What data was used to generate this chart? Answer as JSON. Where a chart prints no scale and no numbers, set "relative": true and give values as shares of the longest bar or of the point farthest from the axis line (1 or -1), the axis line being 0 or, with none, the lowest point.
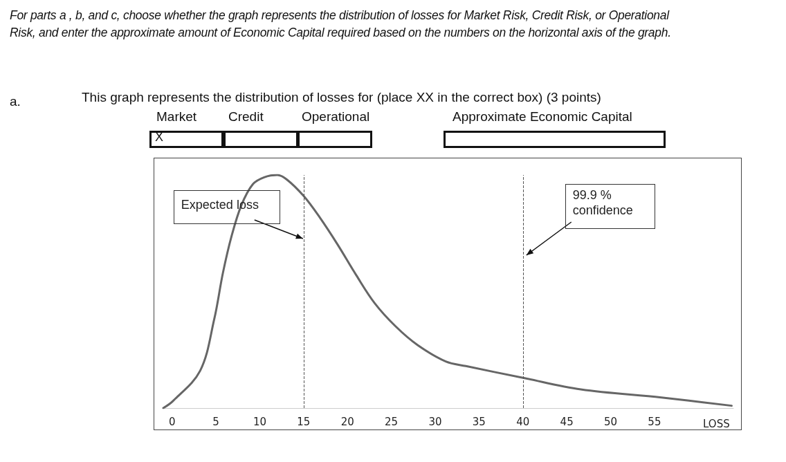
{
  "chart_data": {
    "type": "line",
    "relative": true,
    "annotations": [
      "For parts a , b, and c, choose whether the graph represents the distribution of losses for Market Risk, Credit Risk, or Operational Risk, and enter the approximate amount of Economic Capital required based on the numbers on the horizontal axis of the graph.",
      "a.",
      "This graph represents the distribution of losses for (place XX in the correct box) (3 points)",
      "Market",
      "Credit",
      "Operational",
      "Approximate Economic Capital",
      "X"
    ],
    "xlabel": "LOSS",
    "x": [
      -1.0,
      0.1,
      3.2,
      4.8,
      5.8,
      6.8,
      7.9,
      9.2,
      10.5,
      12.0,
      13.1,
      15.0,
      16.8,
      18.9,
      21.0,
      23.1,
      25.5,
      28.0,
      31.2,
      33.5,
      40.0,
      46.6,
      55.8,
      63.8
    ],
    "series": [
      {
        "color": "#666666",
        "values": [
          0,
          0.03,
          0.16,
          0.38,
          0.58,
          0.74,
          0.87,
          0.96,
          0.99,
          1,
          0.98,
          0.91,
          0.82,
          0.7,
          0.57,
          0.45,
          0.35,
          0.27,
          0.2,
          0.18,
          0.13,
          0.08,
          0.045,
          0.01
        ]
      }
    ],
    "xlim": [
      -1,
      64
    ],
    "xticks": [
      0,
      5,
      10,
      15,
      20,
      25,
      30,
      35,
      40,
      45,
      50,
      55
    ],
    "ref_lines": [
      {
        "axis": "x",
        "value": 15,
        "label": "Expected loss",
        "color": "#555555",
        "line_style": "dashed"
      },
      {
        "axis": "x",
        "value": 40,
        "label": "99.9 % confidence",
        "color": "#555555",
        "line_style": "dashed"
      }
    ],
    "grid": false,
    "marker": "none",
    "line_style": "solid"
  }
}
